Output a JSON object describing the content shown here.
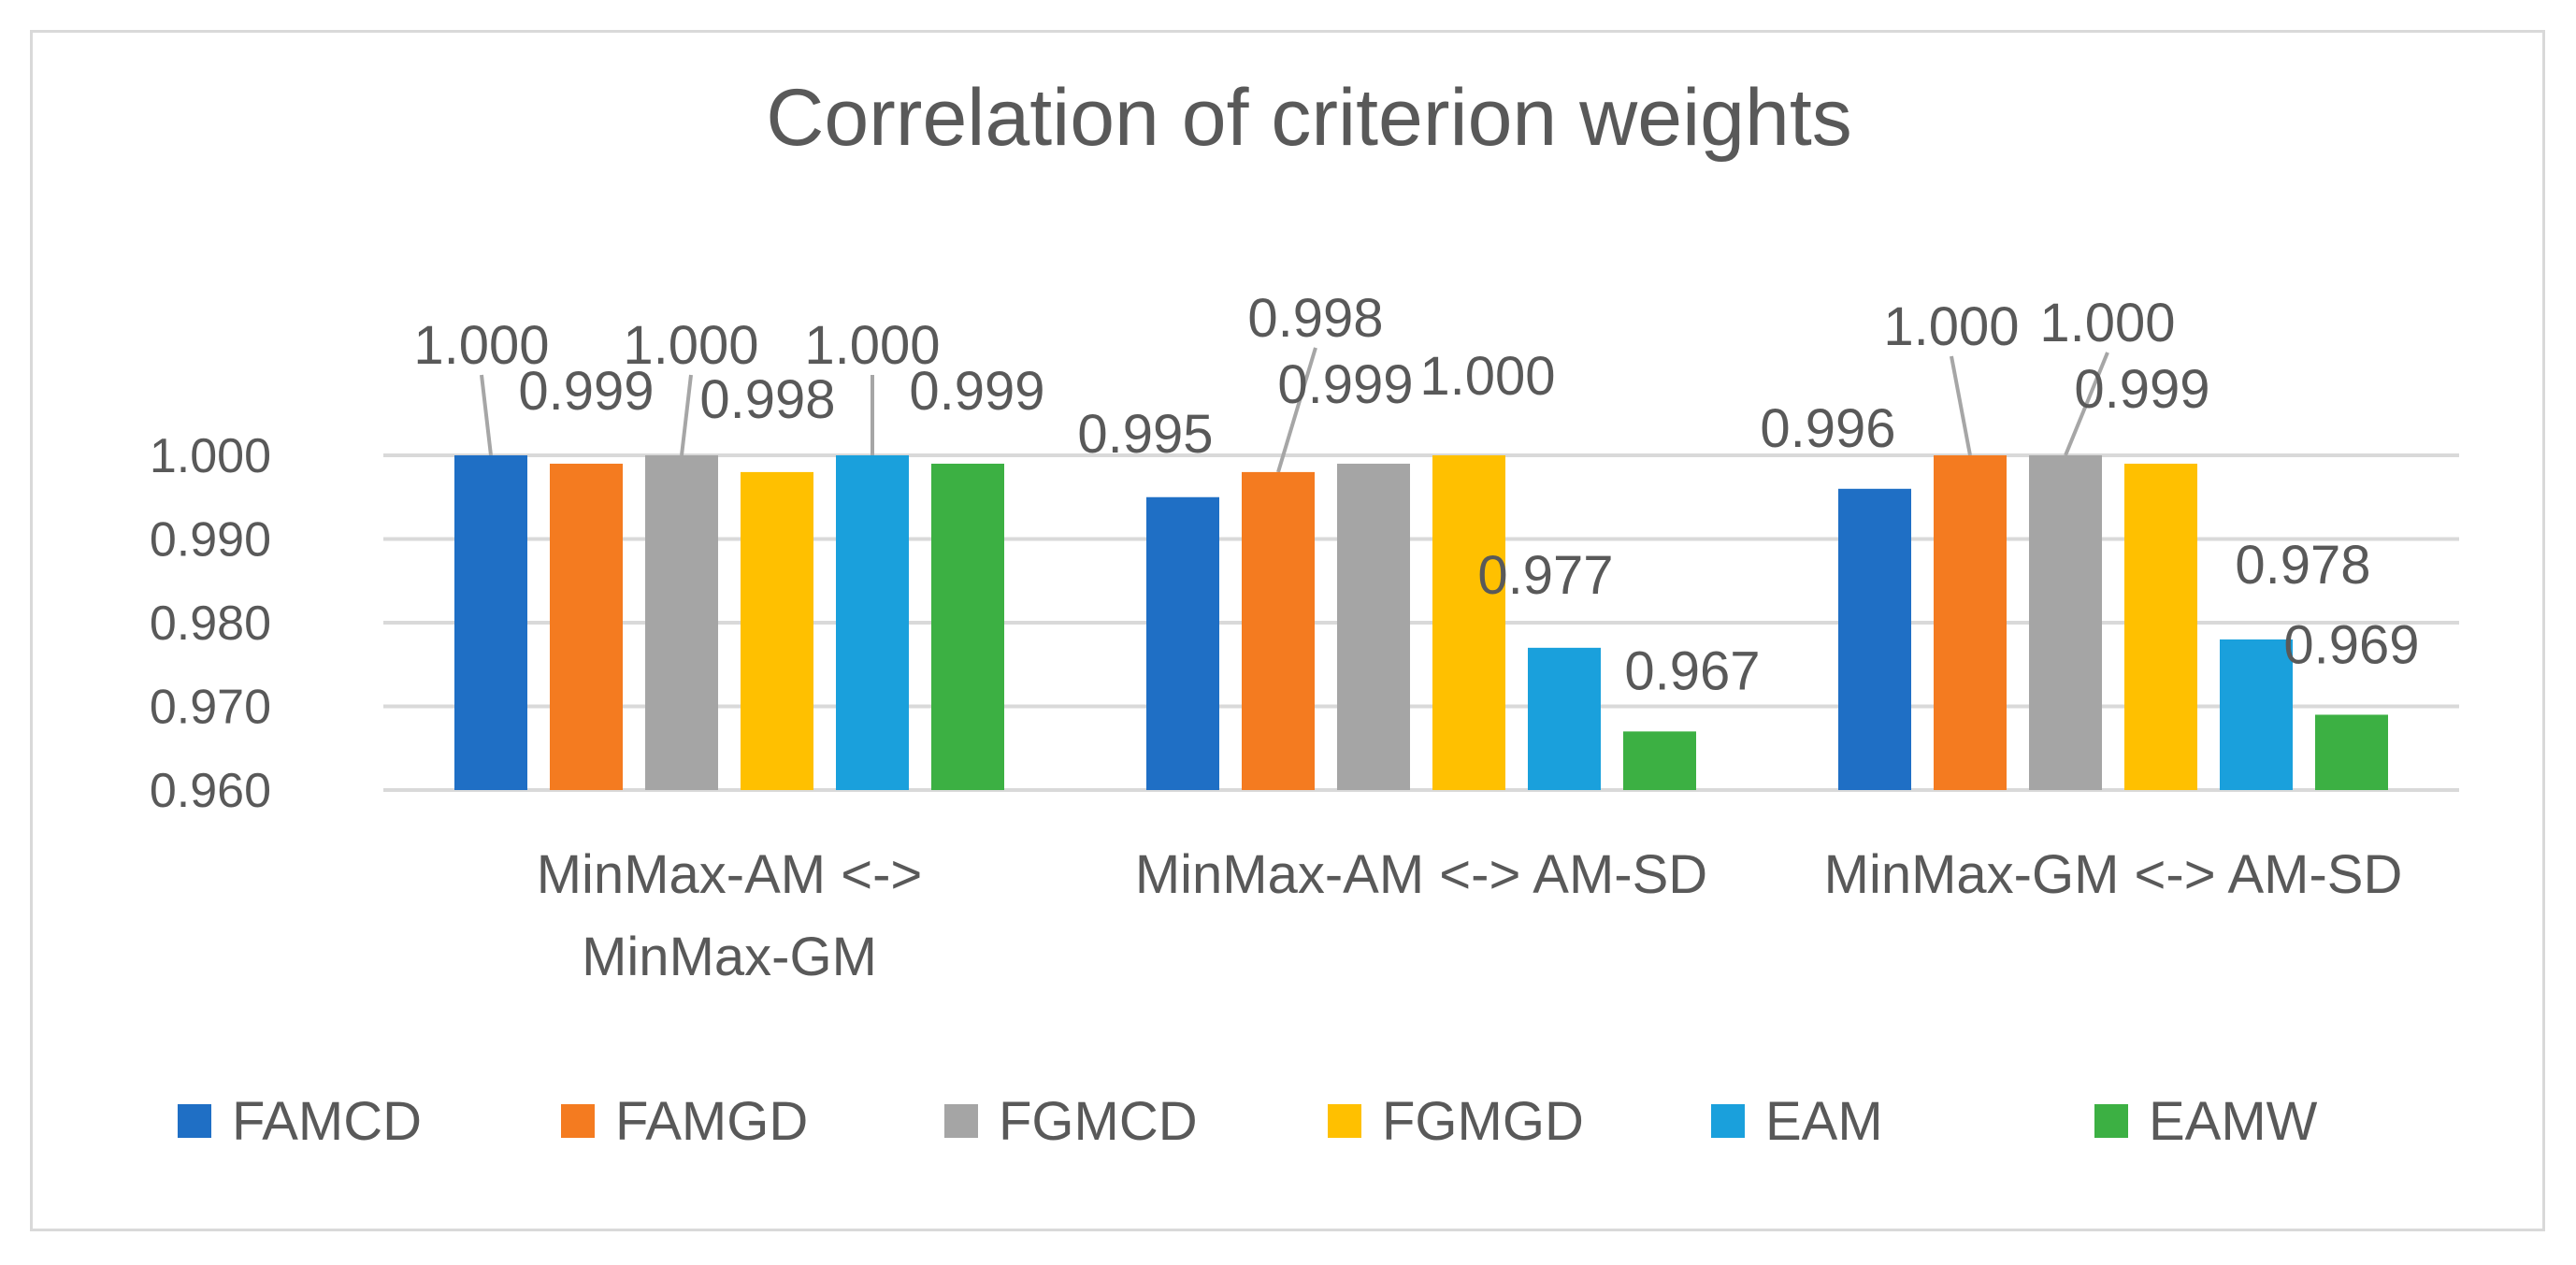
{
  "chart_data": {
    "type": "bar",
    "title": "Correlation of criterion weights",
    "xlabel": "",
    "ylabel": "",
    "categories": [
      [
        "MinMax-AM <->",
        "MinMax-GM"
      ],
      [
        "MinMax-AM <-> AM-SD"
      ],
      [
        "MinMax-GM <-> AM-SD"
      ]
    ],
    "ylim": [
      0.96,
      1.0
    ],
    "yticks": [
      1.0,
      0.99,
      0.98,
      0.97,
      0.96
    ],
    "ytick_labels": [
      "1.000",
      "0.990",
      "0.980",
      "0.970",
      "0.960"
    ],
    "grid": true,
    "legend_position": "bottom",
    "series": [
      {
        "name": "FAMCD",
        "color": "#1f6fc5",
        "values": [
          1.0,
          0.995,
          0.996
        ],
        "labels": [
          "1.000",
          "0.995",
          "0.996"
        ]
      },
      {
        "name": "FAMGD",
        "color": "#f47b20",
        "values": [
          0.999,
          0.998,
          1.0
        ],
        "labels": [
          "0.999",
          "0.998",
          "1.000"
        ]
      },
      {
        "name": "FGMCD",
        "color": "#a5a5a5",
        "values": [
          1.0,
          0.999,
          1.0
        ],
        "labels": [
          "1.000",
          "0.999",
          "1.000"
        ]
      },
      {
        "name": "FGMGD",
        "color": "#ffc000",
        "values": [
          0.998,
          1.0,
          0.999
        ],
        "labels": [
          "0.998",
          "1.000",
          "0.999"
        ]
      },
      {
        "name": "EAM",
        "color": "#1aa0dc",
        "values": [
          1.0,
          0.977,
          0.978
        ],
        "labels": [
          "1.000",
          "0.977",
          "0.978"
        ]
      },
      {
        "name": "EAMW",
        "color": "#3cb043",
        "values": [
          0.999,
          0.967,
          0.969
        ],
        "labels": [
          "0.999",
          "0.967",
          "0.969"
        ]
      }
    ]
  }
}
